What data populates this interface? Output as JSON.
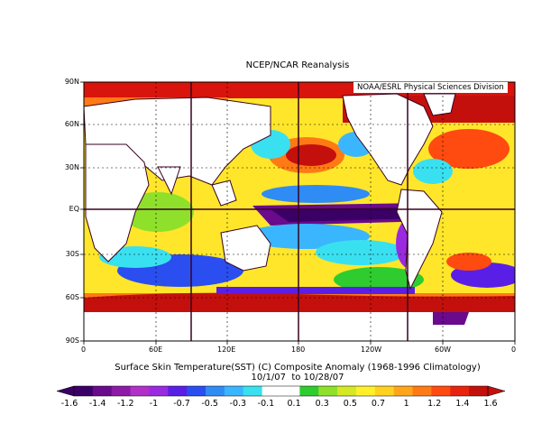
{
  "header": {
    "title": "NCEP/NCAR Reanalysis"
  },
  "credit": "NOAA/ESRL Physical Sciences Division",
  "map": {
    "lat_labels": [
      "90N",
      "60N",
      "30N",
      "EQ",
      "30S",
      "60S",
      "90S"
    ],
    "lon_labels": [
      "0",
      "60E",
      "120E",
      "180",
      "120W",
      "60W",
      "0"
    ]
  },
  "caption": {
    "line1": "Surface Skin Temperature(SST) (C) Composite Anomaly (1968-1996 Climatology)",
    "line2": "10/1/07  to 10/28/07"
  },
  "colorbar": {
    "labels": [
      "-1.6",
      "-1.4",
      "-1.2",
      "-1",
      "-0.7",
      "-0.5",
      "-0.3",
      "-0.1",
      "0.1",
      "0.3",
      "0.5",
      "0.7",
      "1",
      "1.2",
      "1.4",
      "1.6"
    ],
    "colors": [
      "#3a0066",
      "#6a0a8c",
      "#8e1aa8",
      "#b030c8",
      "#9a2ae0",
      "#5a1fe6",
      "#2a4ef0",
      "#2f8cf5",
      "#3ab6ff",
      "#39e0f0",
      "#ffffff",
      "#ffffff",
      "#2ecc2e",
      "#8fe02a",
      "#d4e823",
      "#fff02a",
      "#ffd21f",
      "#ffa51a",
      "#ff7a14",
      "#ff4a10",
      "#e8240e",
      "#c4100c"
    ]
  }
}
